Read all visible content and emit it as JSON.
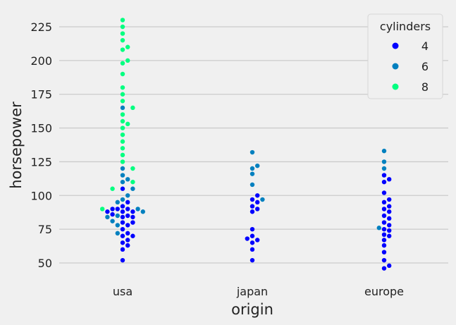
{
  "chart_data": {
    "type": "scatter",
    "subtype": "swarm",
    "xlabel": "origin",
    "ylabel": "horsepower",
    "categories": [
      "usa",
      "japan",
      "europe"
    ],
    "ylim": [
      40,
      235
    ],
    "yticks": [
      50,
      75,
      100,
      125,
      150,
      175,
      200,
      225
    ],
    "grid": true,
    "legend": {
      "title": "cylinders",
      "placement": "top-right",
      "entries": [
        {
          "label": "4",
          "color": "#0000ff"
        },
        {
          "label": "6",
          "color": "#0080bf"
        },
        {
          "label": "8",
          "color": "#00ff80"
        }
      ]
    },
    "series": [
      {
        "name": "4",
        "color": "#0000ff",
        "points": [
          {
            "x": "usa",
            "y": 52
          },
          {
            "x": "usa",
            "y": 60
          },
          {
            "x": "usa",
            "y": 63
          },
          {
            "x": "usa",
            "y": 65
          },
          {
            "x": "usa",
            "y": 67
          },
          {
            "x": "usa",
            "y": 70
          },
          {
            "x": "usa",
            "y": 70
          },
          {
            "x": "usa",
            "y": 72
          },
          {
            "x": "usa",
            "y": 75
          },
          {
            "x": "usa",
            "y": 78
          },
          {
            "x": "usa",
            "y": 80
          },
          {
            "x": "usa",
            "y": 80
          },
          {
            "x": "usa",
            "y": 84
          },
          {
            "x": "usa",
            "y": 84
          },
          {
            "x": "usa",
            "y": 85
          },
          {
            "x": "usa",
            "y": 86
          },
          {
            "x": "usa",
            "y": 88
          },
          {
            "x": "usa",
            "y": 88
          },
          {
            "x": "usa",
            "y": 88
          },
          {
            "x": "usa",
            "y": 90
          },
          {
            "x": "usa",
            "y": 90
          },
          {
            "x": "usa",
            "y": 90
          },
          {
            "x": "usa",
            "y": 92
          },
          {
            "x": "usa",
            "y": 95
          },
          {
            "x": "usa",
            "y": 105
          },
          {
            "x": "japan",
            "y": 52
          },
          {
            "x": "japan",
            "y": 60
          },
          {
            "x": "japan",
            "y": 65
          },
          {
            "x": "japan",
            "y": 67
          },
          {
            "x": "japan",
            "y": 68
          },
          {
            "x": "japan",
            "y": 70
          },
          {
            "x": "japan",
            "y": 75
          },
          {
            "x": "japan",
            "y": 88
          },
          {
            "x": "japan",
            "y": 90
          },
          {
            "x": "japan",
            "y": 92
          },
          {
            "x": "japan",
            "y": 95
          },
          {
            "x": "japan",
            "y": 97
          },
          {
            "x": "japan",
            "y": 100
          },
          {
            "x": "europe",
            "y": 46
          },
          {
            "x": "europe",
            "y": 48
          },
          {
            "x": "europe",
            "y": 52
          },
          {
            "x": "europe",
            "y": 58
          },
          {
            "x": "europe",
            "y": 63
          },
          {
            "x": "europe",
            "y": 67
          },
          {
            "x": "europe",
            "y": 70
          },
          {
            "x": "europe",
            "y": 71
          },
          {
            "x": "europe",
            "y": 74
          },
          {
            "x": "europe",
            "y": 75
          },
          {
            "x": "europe",
            "y": 78
          },
          {
            "x": "europe",
            "y": 80
          },
          {
            "x": "europe",
            "y": 83
          },
          {
            "x": "europe",
            "y": 85
          },
          {
            "x": "europe",
            "y": 88
          },
          {
            "x": "europe",
            "y": 90
          },
          {
            "x": "europe",
            "y": 92
          },
          {
            "x": "europe",
            "y": 95
          },
          {
            "x": "europe",
            "y": 97
          },
          {
            "x": "europe",
            "y": 102
          },
          {
            "x": "europe",
            "y": 110
          },
          {
            "x": "europe",
            "y": 112
          },
          {
            "x": "europe",
            "y": 115
          }
        ]
      },
      {
        "name": "6",
        "color": "#0080bf",
        "points": [
          {
            "x": "usa",
            "y": 72
          },
          {
            "x": "usa",
            "y": 78
          },
          {
            "x": "usa",
            "y": 81
          },
          {
            "x": "usa",
            "y": 84
          },
          {
            "x": "usa",
            "y": 85
          },
          {
            "x": "usa",
            "y": 88
          },
          {
            "x": "usa",
            "y": 90
          },
          {
            "x": "usa",
            "y": 95
          },
          {
            "x": "usa",
            "y": 97
          },
          {
            "x": "usa",
            "y": 100
          },
          {
            "x": "usa",
            "y": 105
          },
          {
            "x": "usa",
            "y": 110
          },
          {
            "x": "usa",
            "y": 112
          },
          {
            "x": "usa",
            "y": 115
          },
          {
            "x": "usa",
            "y": 120
          },
          {
            "x": "usa",
            "y": 165
          },
          {
            "x": "japan",
            "y": 97
          },
          {
            "x": "japan",
            "y": 108
          },
          {
            "x": "japan",
            "y": 116
          },
          {
            "x": "japan",
            "y": 120
          },
          {
            "x": "japan",
            "y": 122
          },
          {
            "x": "japan",
            "y": 132
          },
          {
            "x": "europe",
            "y": 76
          },
          {
            "x": "europe",
            "y": 120
          },
          {
            "x": "europe",
            "y": 125
          },
          {
            "x": "europe",
            "y": 133
          }
        ]
      },
      {
        "name": "8",
        "color": "#00ff80",
        "points": [
          {
            "x": "usa",
            "y": 90
          },
          {
            "x": "usa",
            "y": 105
          },
          {
            "x": "usa",
            "y": 110
          },
          {
            "x": "usa",
            "y": 120
          },
          {
            "x": "usa",
            "y": 125
          },
          {
            "x": "usa",
            "y": 130
          },
          {
            "x": "usa",
            "y": 135
          },
          {
            "x": "usa",
            "y": 140
          },
          {
            "x": "usa",
            "y": 145
          },
          {
            "x": "usa",
            "y": 150
          },
          {
            "x": "usa",
            "y": 153
          },
          {
            "x": "usa",
            "y": 155
          },
          {
            "x": "usa",
            "y": 160
          },
          {
            "x": "usa",
            "y": 165
          },
          {
            "x": "usa",
            "y": 170
          },
          {
            "x": "usa",
            "y": 175
          },
          {
            "x": "usa",
            "y": 180
          },
          {
            "x": "usa",
            "y": 190
          },
          {
            "x": "usa",
            "y": 198
          },
          {
            "x": "usa",
            "y": 200
          },
          {
            "x": "usa",
            "y": 208
          },
          {
            "x": "usa",
            "y": 210
          },
          {
            "x": "usa",
            "y": 215
          },
          {
            "x": "usa",
            "y": 220
          },
          {
            "x": "usa",
            "y": 225
          },
          {
            "x": "usa",
            "y": 230
          }
        ]
      }
    ]
  }
}
